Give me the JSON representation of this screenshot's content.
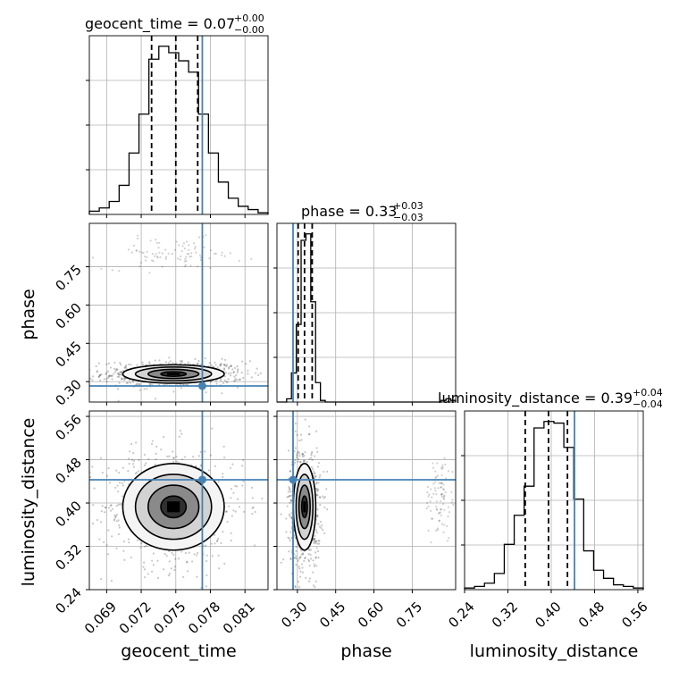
{
  "chart_data": {
    "type": "corner",
    "truth_color": "#4682b4",
    "parameters": [
      {
        "name": "geocent_time",
        "range": [
          0.0675,
          0.083
        ],
        "ticks": [
          0.069,
          0.072,
          0.075,
          0.078,
          0.081
        ],
        "tick_labels": [
          "0.069",
          "0.072",
          "0.075",
          "0.078",
          "0.081"
        ],
        "truth": 0.0773,
        "quantiles": [
          0.0729,
          0.075,
          0.0769
        ],
        "title_main": "geocent_time = 0.07",
        "title_plus": "+0.00",
        "title_minus": "−0.00",
        "hist": [
          2,
          4,
          8,
          18,
          38,
          62,
          96,
          104,
          100,
          95,
          88,
          62,
          38,
          20,
          10,
          5,
          3,
          1
        ]
      },
      {
        "name": "phase",
        "range": [
          0.22,
          0.92
        ],
        "ticks": [
          0.3,
          0.45,
          0.6,
          0.75
        ],
        "tick_labels": [
          "0.30",
          "0.45",
          "0.60",
          "0.75"
        ],
        "truth": 0.283,
        "quantiles": [
          0.303,
          0.328,
          0.358
        ],
        "title_main": "phase = 0.33",
        "title_plus": "+0.03",
        "title_minus": "−0.03",
        "hist": [
          0,
          0,
          2,
          18,
          48,
          100,
          104,
          62,
          12,
          1,
          0,
          0,
          0,
          0,
          0,
          0,
          0,
          0,
          0,
          0,
          0,
          0,
          0,
          0,
          0,
          0,
          0,
          0,
          0,
          0,
          0,
          0,
          0,
          0,
          1,
          2,
          1
        ]
      },
      {
        "name": "luminosity_distance",
        "range": [
          0.24,
          0.57
        ],
        "ticks": [
          0.24,
          0.32,
          0.4,
          0.48,
          0.56
        ],
        "tick_labels": [
          "0.24",
          "0.32",
          "0.40",
          "0.48",
          "0.56"
        ],
        "truth": 0.443,
        "quantiles": [
          0.352,
          0.395,
          0.43
        ],
        "title_main": "luminosity_distance = 0.39",
        "title_plus": "+0.04",
        "title_minus": "−0.04",
        "hist": [
          1,
          2,
          4,
          10,
          28,
          46,
          64,
          100,
          104,
          103,
          88,
          56,
          24,
          12,
          7,
          3,
          2,
          1
        ]
      }
    ],
    "pairs": [
      {
        "x": "geocent_time",
        "y": "phase",
        "density_center": [
          0.0748,
          0.33
        ],
        "density_spread": [
          0.0022,
          0.018
        ],
        "contour_levels": [
          "0.5σ",
          "1σ",
          "1.5σ",
          "2σ"
        ],
        "tail_center": [
          0.0748,
          0.8
        ],
        "tail_spread": [
          0.003,
          0.03
        ]
      },
      {
        "x": "geocent_time",
        "y": "luminosity_distance",
        "density_center": [
          0.0748,
          0.393
        ],
        "density_spread": [
          0.0022,
          0.04
        ],
        "contour_levels": [
          "0.5σ",
          "1σ",
          "1.5σ",
          "2σ"
        ]
      },
      {
        "x": "phase",
        "y": "luminosity_distance",
        "density_center": [
          0.328,
          0.393
        ],
        "density_spread": [
          0.022,
          0.04
        ],
        "contour_levels": [
          "0.5σ",
          "1σ",
          "1.5σ",
          "2σ"
        ],
        "tail_center": [
          0.86,
          0.41
        ],
        "tail_spread": [
          0.03,
          0.04
        ]
      }
    ],
    "grid": true
  }
}
